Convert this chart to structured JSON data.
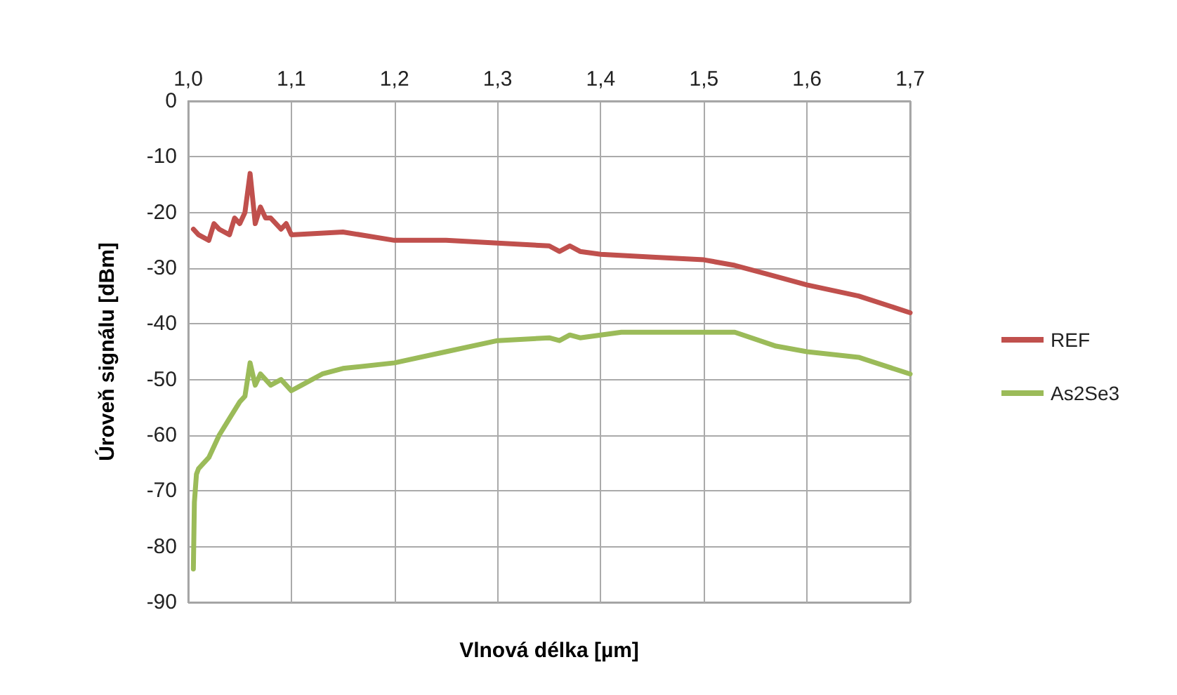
{
  "chart_data": {
    "type": "line",
    "xlabel": "Vlnová délka [µm]",
    "ylabel": "Úroveň signálu [dBm]",
    "xlim": [
      1.0,
      1.7
    ],
    "xticks": [
      {
        "value": 1.0,
        "label": "1,0"
      },
      {
        "value": 1.1,
        "label": "1,1"
      },
      {
        "value": 1.2,
        "label": "1,2"
      },
      {
        "value": 1.3,
        "label": "1,3"
      },
      {
        "value": 1.4,
        "label": "1,4"
      },
      {
        "value": 1.5,
        "label": "1,5"
      },
      {
        "value": 1.6,
        "label": "1,6"
      },
      {
        "value": 1.7,
        "label": "1,7"
      }
    ],
    "ylim": [
      -90,
      0
    ],
    "yticks": [
      -90,
      -80,
      -70,
      -60,
      -50,
      -40,
      -30,
      -20,
      -10,
      0
    ],
    "grid": true,
    "legend": "right",
    "marker": "none",
    "line_style": "solid",
    "series": [
      {
        "name": "REF",
        "color": "#c0504d",
        "x": [
          1.005,
          1.01,
          1.02,
          1.025,
          1.03,
          1.04,
          1.045,
          1.05,
          1.055,
          1.06,
          1.065,
          1.07,
          1.075,
          1.08,
          1.09,
          1.095,
          1.1,
          1.15,
          1.2,
          1.25,
          1.3,
          1.35,
          1.36,
          1.37,
          1.38,
          1.4,
          1.45,
          1.5,
          1.53,
          1.56,
          1.6,
          1.65,
          1.7
        ],
        "values": [
          -23,
          -24,
          -25,
          -22,
          -23,
          -24,
          -21,
          -22,
          -20,
          -13,
          -22,
          -19,
          -21,
          -21,
          -23,
          -22,
          -24,
          -23.5,
          -25,
          -25,
          -25.5,
          -26,
          -27,
          -26,
          -27,
          -27.5,
          -28,
          -28.5,
          -29.5,
          -31,
          -33,
          -35,
          -38
        ]
      },
      {
        "name": "As2Se3",
        "color": "#9bbb59",
        "x": [
          1.005,
          1.006,
          1.008,
          1.01,
          1.02,
          1.03,
          1.04,
          1.05,
          1.055,
          1.06,
          1.065,
          1.07,
          1.08,
          1.09,
          1.1,
          1.11,
          1.13,
          1.15,
          1.2,
          1.25,
          1.3,
          1.35,
          1.36,
          1.37,
          1.38,
          1.42,
          1.5,
          1.53,
          1.57,
          1.6,
          1.65,
          1.7
        ],
        "values": [
          -84,
          -72,
          -67,
          -66,
          -64,
          -60,
          -57,
          -54,
          -53,
          -47,
          -51,
          -49,
          -51,
          -50,
          -52,
          -51,
          -49,
          -48,
          -47,
          -45,
          -43,
          -42.5,
          -43,
          -42,
          -42.5,
          -41.5,
          -41.5,
          -41.5,
          -44,
          -45,
          -46,
          -49
        ]
      }
    ]
  }
}
